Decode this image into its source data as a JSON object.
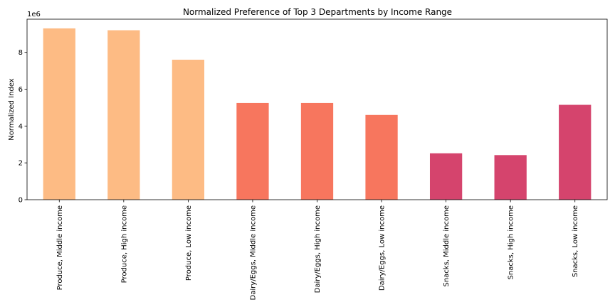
{
  "chart_data": {
    "type": "bar",
    "title": "Normalized Preference of Top 3 Departments by Income Range",
    "xlabel": "",
    "ylabel": "Normalized Index",
    "y_offset_label": "1e6",
    "ylim": [
      0,
      9800000
    ],
    "yticks": [
      0,
      2,
      4,
      6,
      8
    ],
    "ytick_scale": 1000000,
    "grid": false,
    "legend": "none",
    "categories": [
      "Produce, Middle income",
      "Produce, High income",
      "Produce, Low income",
      "Dairy/Eggs, Middle income",
      "Dairy/Eggs, High income",
      "Dairy/Eggs, Low income",
      "Snacks, Middle income",
      "Snacks, High income",
      "Snacks, Low income"
    ],
    "values": [
      9300000,
      9200000,
      7600000,
      5250000,
      5250000,
      4600000,
      2520000,
      2420000,
      5150000
    ],
    "colors": [
      "#fdbb84",
      "#fdbb84",
      "#fdbb84",
      "#f7765e",
      "#f7765e",
      "#f7765e",
      "#d5446d",
      "#d5446d",
      "#d5446d"
    ]
  }
}
